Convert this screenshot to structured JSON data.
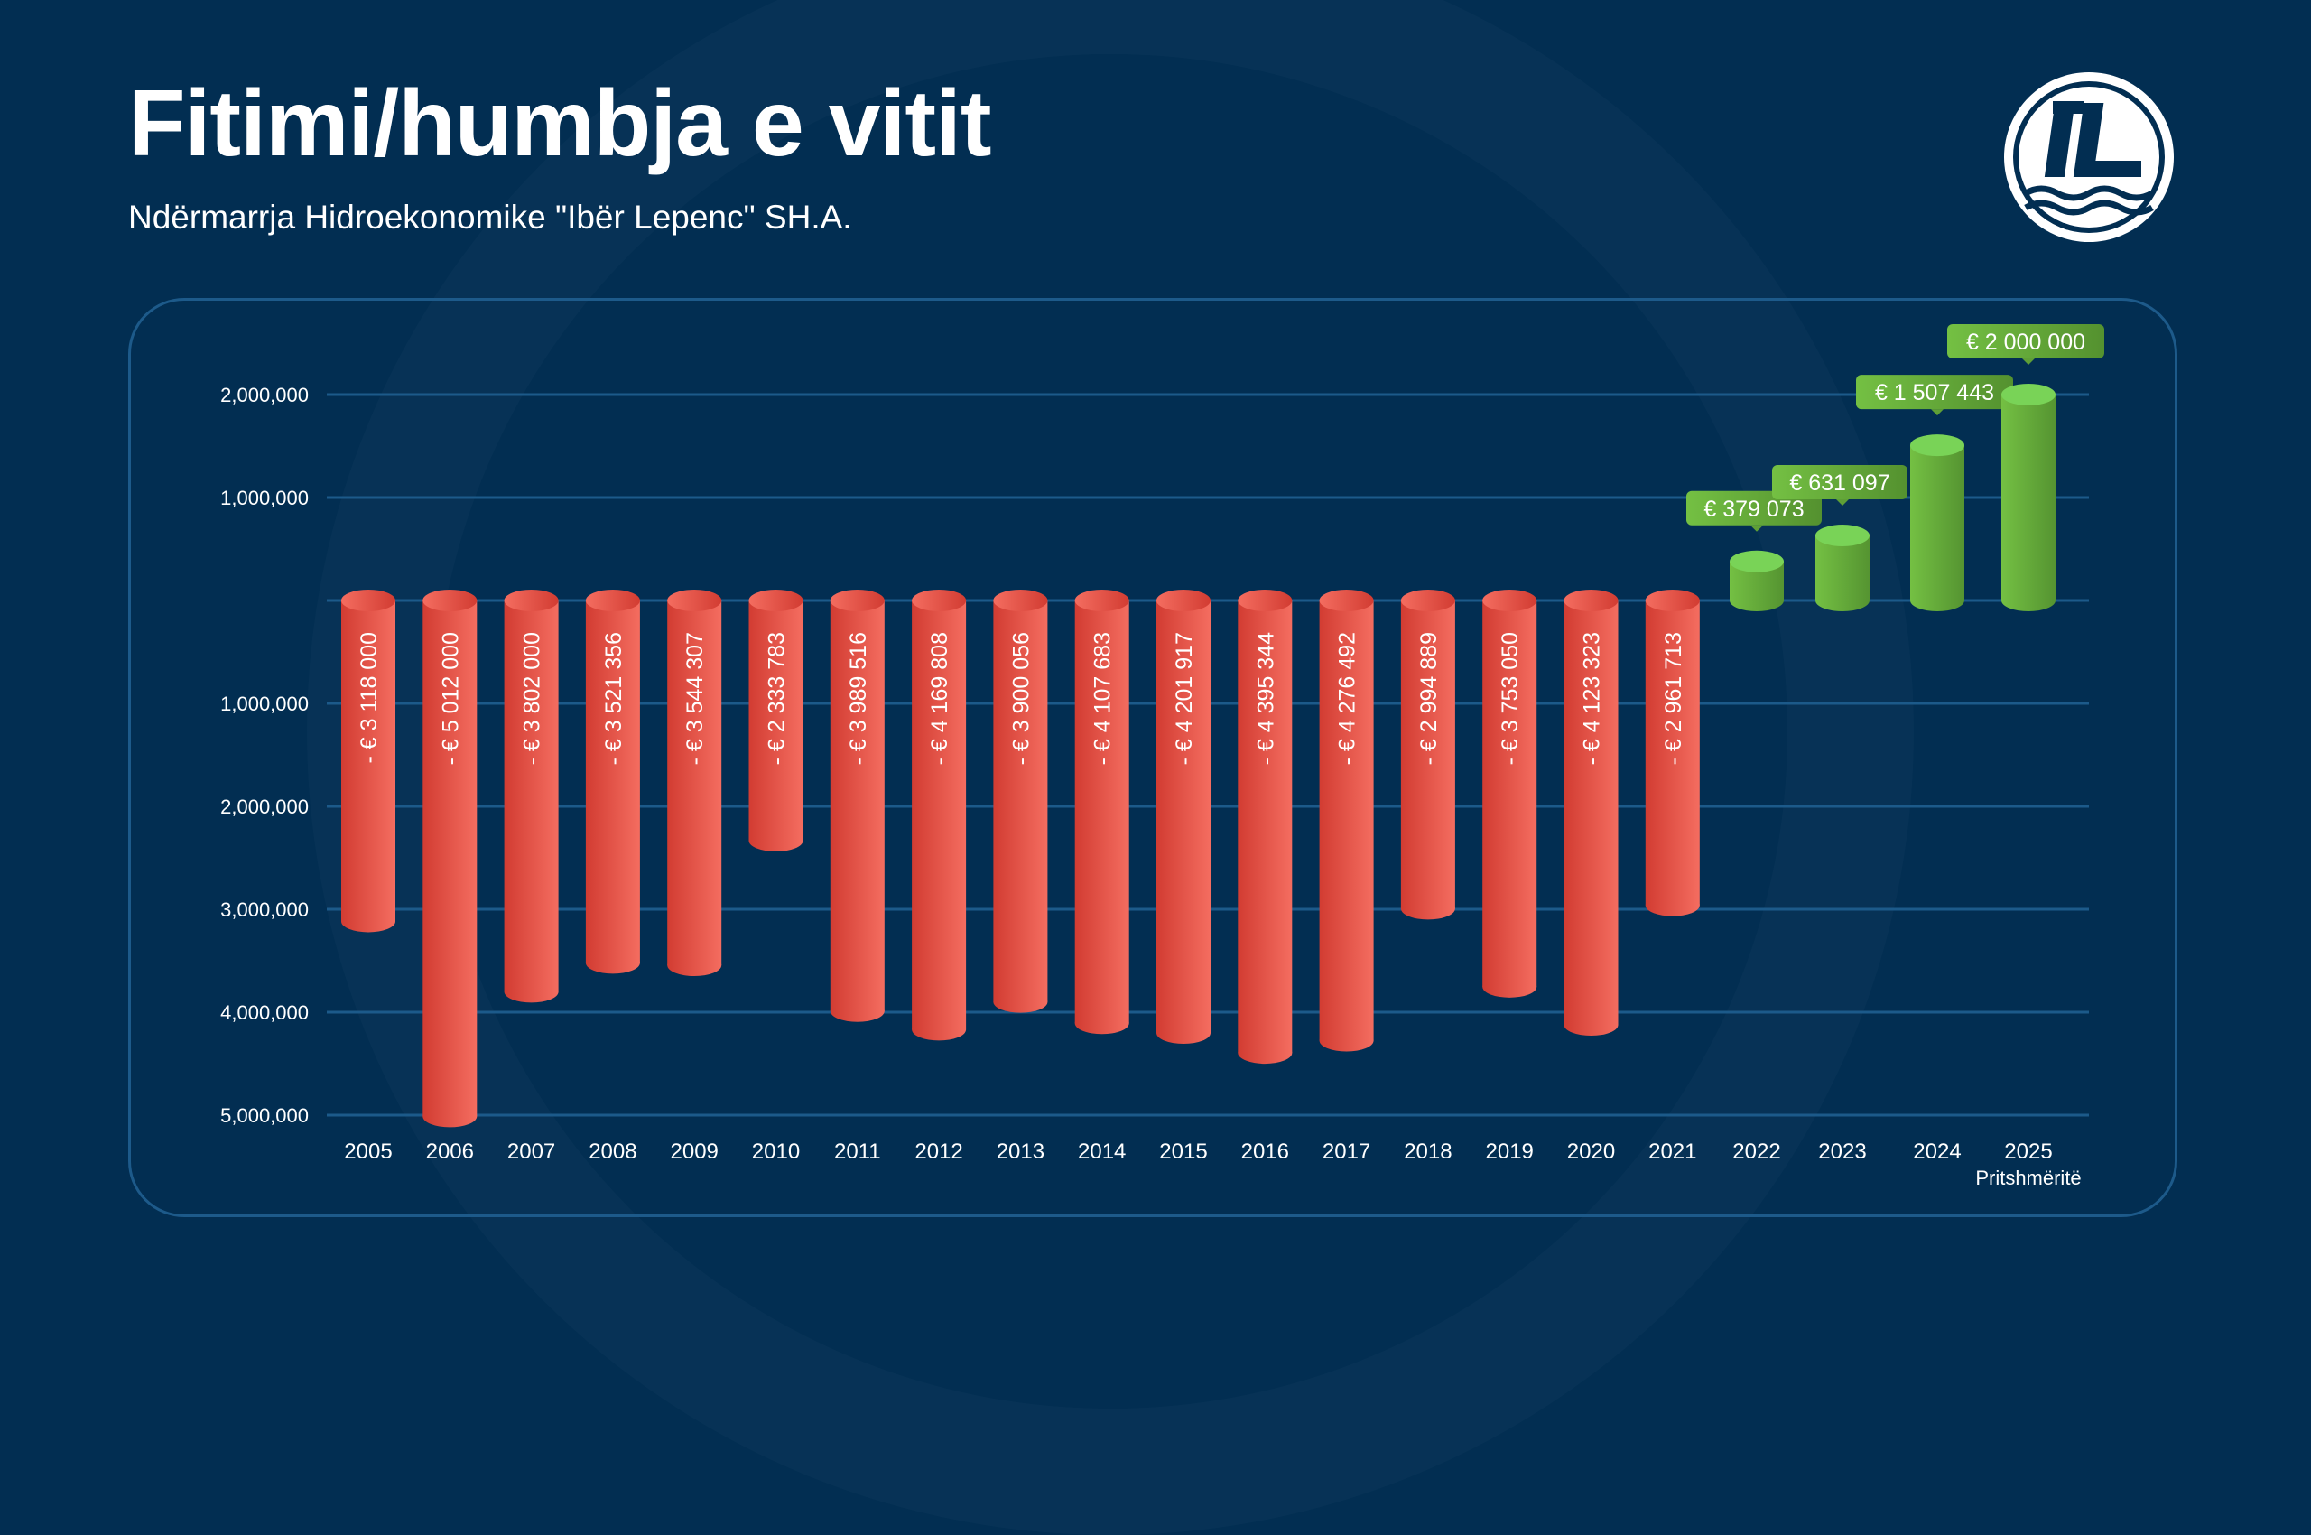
{
  "header": {
    "title": "Fitimi/humbja e vitit",
    "subtitle": "Ndërmarrja Hidroekonomike \"Ibër Lepenc\" SH.A.",
    "logo_text": "IL"
  },
  "colors": {
    "background": "#022e52",
    "negative": "#e0483d",
    "positive": "#6cbf45",
    "grid": "#1c5a8a"
  },
  "chart_data": {
    "type": "bar",
    "title": "Fitimi/humbja e vitit",
    "xlabel": "",
    "ylabel": "",
    "ylim": [
      -5000000,
      2000000
    ],
    "y_ticks": [
      2000000,
      1000000,
      0,
      -1000000,
      -2000000,
      -3000000,
      -4000000,
      -5000000
    ],
    "y_tick_labels": [
      "2,000,000",
      "1,000,000",
      "",
      "1,000,000",
      "2,000,000",
      "3,000,000",
      "4,000,000",
      "5,000,000"
    ],
    "categories": [
      "2005",
      "2006",
      "2007",
      "2008",
      "2009",
      "2010",
      "2011",
      "2012",
      "2013",
      "2014",
      "2015",
      "2016",
      "2017",
      "2018",
      "2019",
      "2020",
      "2021",
      "2022",
      "2023",
      "2024",
      "2025"
    ],
    "values": [
      -3118000,
      -5012000,
      -3802000,
      -3521356,
      -3544307,
      -2333783,
      -3989516,
      -4169808,
      -3900056,
      -4107683,
      -4201917,
      -4395344,
      -4276492,
      -2994889,
      -3753050,
      -4123323,
      -2961713,
      379073,
      631097,
      1507443,
      2000000
    ],
    "data_labels": [
      "- € 3 118 000",
      "- € 5 012 000",
      "- € 3 802 000",
      "- € 3 521 356",
      "- € 3 544 307",
      "- € 2 333 783",
      "- € 3 989 516",
      "- € 4 169 808",
      "- € 3 900 056",
      "- € 4 107 683",
      "- € 4 201 917",
      "- € 4 395 344",
      "- € 4 276 492",
      "- € 2 994 889",
      "- € 3 753 050",
      "- € 4 123 323",
      "- € 2 961 713",
      "€ 379 073",
      "€ 631 097",
      "€ 1 507 443",
      "€ 2 000 000"
    ],
    "annotation": "Pritshmëritë",
    "grid": true
  }
}
